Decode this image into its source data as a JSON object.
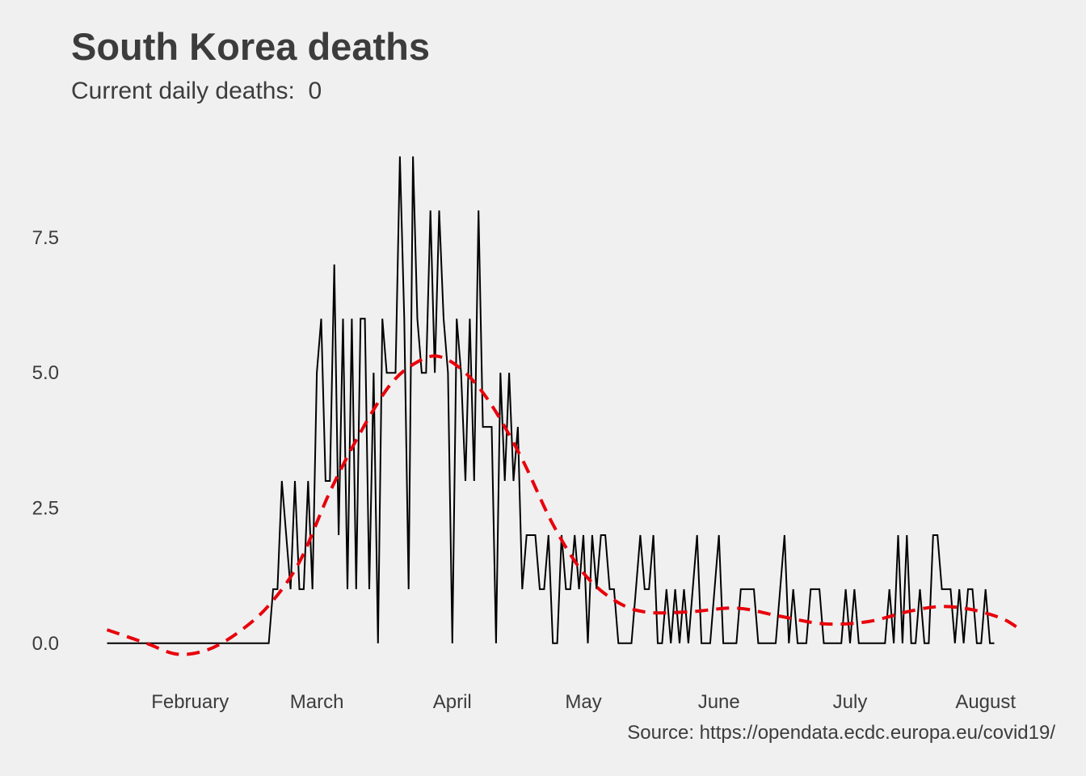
{
  "chart_data": {
    "type": "line",
    "title": "South Korea deaths",
    "subtitle": "Current daily deaths:  0",
    "caption": "Source: https://opendata.ecdc.europa.eu/covid19/",
    "xlabel": "",
    "ylabel": "",
    "x_start": "2020-01-13",
    "x_end": "2020-08-09",
    "xlim": [
      "2020-01-07",
      "2020-08-14"
    ],
    "ylim": [
      -0.6,
      9.5
    ],
    "y_ticks": [
      0.0,
      2.5,
      5.0,
      7.5
    ],
    "y_tick_labels": [
      "0.0",
      "2.5",
      "5.0",
      "7.5"
    ],
    "x_ticks": [
      "2020-02-01",
      "2020-03-01",
      "2020-04-01",
      "2020-05-01",
      "2020-06-01",
      "2020-07-01",
      "2020-08-01"
    ],
    "x_tick_labels": [
      "February",
      "March",
      "April",
      "May",
      "June",
      "July",
      "August"
    ],
    "grid": false,
    "legend": "none",
    "colors": {
      "background": "#f0f0f0",
      "series": "#000000",
      "trend": "#e8000b",
      "text": "#3c3c3c"
    },
    "series": [
      {
        "values": [
          0,
          0,
          0,
          0,
          0,
          0,
          0,
          0,
          0,
          0,
          0,
          0,
          0,
          0,
          0,
          0,
          0,
          0,
          0,
          0,
          0,
          0,
          0,
          0,
          0,
          0,
          0,
          0,
          0,
          0,
          0,
          0,
          0,
          0,
          0,
          0,
          0,
          0,
          1,
          1,
          3,
          2,
          1,
          3,
          1,
          1,
          3,
          1,
          5,
          6,
          3,
          3,
          7,
          2,
          6,
          1,
          6,
          1,
          6,
          6,
          1,
          5,
          0,
          6,
          5,
          5,
          5,
          9,
          6,
          1,
          9,
          6,
          5,
          5,
          8,
          5,
          8,
          6,
          5,
          0,
          6,
          5,
          3,
          6,
          3,
          8,
          4,
          4,
          4,
          0,
          5,
          3,
          5,
          3,
          4,
          1,
          2,
          2,
          2,
          1,
          1,
          2,
          0,
          0,
          2,
          1,
          1,
          2,
          1,
          2,
          0,
          2,
          1,
          2,
          2,
          1,
          1,
          0,
          0,
          0,
          0,
          1,
          2,
          1,
          1,
          2,
          0,
          0,
          1,
          0,
          1,
          0,
          1,
          0,
          1,
          2,
          0,
          0,
          0,
          1,
          2,
          0,
          0,
          0,
          0,
          1,
          1,
          1,
          1,
          0,
          0,
          0,
          0,
          0,
          1,
          2,
          0,
          1,
          0,
          0,
          0,
          1,
          1,
          1,
          0,
          0,
          0,
          0,
          0,
          1,
          0,
          1,
          0,
          0,
          0,
          0,
          0,
          0,
          0,
          1,
          0,
          2,
          0,
          2,
          0,
          0,
          1,
          0,
          0,
          2,
          2,
          1,
          1,
          1,
          0,
          1,
          0,
          1,
          1,
          0,
          0,
          1,
          0,
          0
        ],
        "color": "#000000"
      },
      {
        "style": "dashed",
        "smooth": true,
        "points": [
          [
            "2020-01-13",
            0.25
          ],
          [
            "2020-01-22",
            0.0
          ],
          [
            "2020-01-29",
            -0.2
          ],
          [
            "2020-02-05",
            -0.12
          ],
          [
            "2020-02-12",
            0.2
          ],
          [
            "2020-02-19",
            0.7
          ],
          [
            "2020-02-26",
            1.5
          ],
          [
            "2020-03-04",
            2.8
          ],
          [
            "2020-03-11",
            3.9
          ],
          [
            "2020-03-18",
            4.8
          ],
          [
            "2020-03-24",
            5.2
          ],
          [
            "2020-03-29",
            5.3
          ],
          [
            "2020-04-04",
            5.0
          ],
          [
            "2020-04-10",
            4.4
          ],
          [
            "2020-04-17",
            3.4
          ],
          [
            "2020-04-24",
            2.2
          ],
          [
            "2020-05-01",
            1.3
          ],
          [
            "2020-05-08",
            0.8
          ],
          [
            "2020-05-15",
            0.58
          ],
          [
            "2020-05-25",
            0.58
          ],
          [
            "2020-06-05",
            0.65
          ],
          [
            "2020-06-15",
            0.5
          ],
          [
            "2020-06-25",
            0.36
          ],
          [
            "2020-07-05",
            0.4
          ],
          [
            "2020-07-15",
            0.6
          ],
          [
            "2020-07-22",
            0.68
          ],
          [
            "2020-07-29",
            0.62
          ],
          [
            "2020-08-05",
            0.45
          ],
          [
            "2020-08-09",
            0.25
          ]
        ],
        "color": "#e8000b"
      }
    ]
  }
}
